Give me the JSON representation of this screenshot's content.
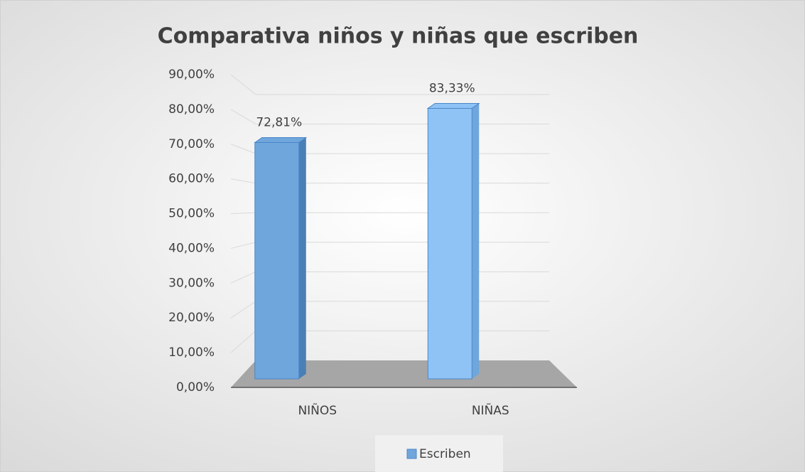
{
  "chart_data": {
    "type": "bar3d",
    "title": "Comparativa niños y niñas que escriben",
    "categories": [
      "NIÑOS",
      "NIÑAS"
    ],
    "series": [
      {
        "name": "Escriben",
        "color": "#6fa6dc",
        "values": [
          72.81,
          83.33
        ],
        "value_labels": [
          "72,81%",
          "83,33%"
        ]
      }
    ],
    "ylim": [
      0,
      90
    ],
    "yticks": [
      {
        "value": 0,
        "label": "0,00%"
      },
      {
        "value": 10,
        "label": "10,00%"
      },
      {
        "value": 20,
        "label": "20,00%"
      },
      {
        "value": 30,
        "label": "30,00%"
      },
      {
        "value": 40,
        "label": "40,00%"
      },
      {
        "value": 50,
        "label": "50,00%"
      },
      {
        "value": 60,
        "label": "60,00%"
      },
      {
        "value": 70,
        "label": "70,00%"
      },
      {
        "value": 80,
        "label": "80,00%"
      },
      {
        "value": 90,
        "label": "90,00%"
      }
    ],
    "grid": true,
    "legend": "bottom"
  }
}
